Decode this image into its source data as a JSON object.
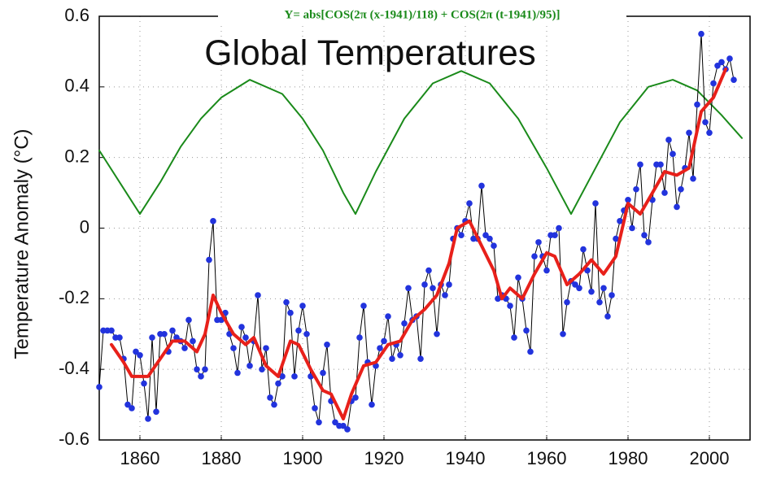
{
  "chart_data": {
    "type": "line",
    "title": "Global Temperatures",
    "subtitle": "Y= abs[COS(2π (x-1941)/118) + COS(2π (t-1941)/95)]",
    "y_label": "Temperature Anomaly (°C)",
    "xlim": [
      1850,
      2010
    ],
    "ylim": [
      -0.6,
      0.6
    ],
    "xticks": [
      1860,
      1880,
      1900,
      1920,
      1940,
      1960,
      1980,
      2000
    ],
    "yticks": [
      -0.6,
      -0.4,
      -0.2,
      0,
      0.2,
      0.4,
      0.6
    ],
    "grid": true,
    "series": [
      {
        "color": "#000000",
        "marker_color": "#2233dd",
        "markers": true,
        "width": 1,
        "x": [
          1850,
          1851,
          1852,
          1853,
          1854,
          1855,
          1856,
          1857,
          1858,
          1859,
          1860,
          1861,
          1862,
          1863,
          1864,
          1865,
          1866,
          1867,
          1868,
          1869,
          1870,
          1871,
          1872,
          1873,
          1874,
          1875,
          1876,
          1877,
          1878,
          1879,
          1880,
          1881,
          1882,
          1883,
          1884,
          1885,
          1886,
          1887,
          1888,
          1889,
          1890,
          1891,
          1892,
          1893,
          1894,
          1895,
          1896,
          1897,
          1898,
          1899,
          1900,
          1901,
          1902,
          1903,
          1904,
          1905,
          1906,
          1907,
          1908,
          1909,
          1910,
          1911,
          1912,
          1913,
          1914,
          1915,
          1916,
          1917,
          1918,
          1919,
          1920,
          1921,
          1922,
          1923,
          1924,
          1925,
          1926,
          1927,
          1928,
          1929,
          1930,
          1931,
          1932,
          1933,
          1934,
          1935,
          1936,
          1937,
          1938,
          1939,
          1940,
          1941,
          1942,
          1943,
          1944,
          1945,
          1946,
          1947,
          1948,
          1949,
          1950,
          1951,
          1952,
          1953,
          1954,
          1955,
          1956,
          1957,
          1958,
          1959,
          1960,
          1961,
          1962,
          1963,
          1964,
          1965,
          1966,
          1967,
          1968,
          1969,
          1970,
          1971,
          1972,
          1973,
          1974,
          1975,
          1976,
          1977,
          1978,
          1979,
          1980,
          1981,
          1982,
          1983,
          1984,
          1985,
          1986,
          1987,
          1988,
          1989,
          1990,
          1991,
          1992,
          1993,
          1994,
          1995,
          1996,
          1997,
          1998,
          1999,
          2000,
          2001,
          2002,
          2003,
          2004,
          2005,
          2006
        ],
        "values": [
          -0.45,
          -0.29,
          -0.29,
          -0.29,
          -0.31,
          -0.31,
          -0.37,
          -0.5,
          -0.51,
          -0.35,
          -0.36,
          -0.44,
          -0.54,
          -0.31,
          -0.52,
          -0.3,
          -0.3,
          -0.35,
          -0.29,
          -0.31,
          -0.32,
          -0.34,
          -0.26,
          -0.32,
          -0.4,
          -0.42,
          -0.4,
          -0.09,
          0.02,
          -0.26,
          -0.26,
          -0.24,
          -0.3,
          -0.34,
          -0.41,
          -0.28,
          -0.31,
          -0.39,
          -0.32,
          -0.19,
          -0.4,
          -0.34,
          -0.48,
          -0.5,
          -0.44,
          -0.42,
          -0.21,
          -0.24,
          -0.42,
          -0.29,
          -0.22,
          -0.3,
          -0.42,
          -0.51,
          -0.55,
          -0.41,
          -0.33,
          -0.49,
          -0.55,
          -0.56,
          -0.56,
          -0.57,
          -0.49,
          -0.48,
          -0.31,
          -0.22,
          -0.38,
          -0.5,
          -0.39,
          -0.34,
          -0.32,
          -0.25,
          -0.37,
          -0.33,
          -0.36,
          -0.27,
          -0.17,
          -0.26,
          -0.25,
          -0.37,
          -0.16,
          -0.12,
          -0.17,
          -0.3,
          -0.16,
          -0.19,
          -0.16,
          -0.03,
          0.0,
          -0.02,
          0.02,
          0.07,
          -0.03,
          -0.03,
          0.12,
          -0.02,
          -0.03,
          -0.05,
          -0.2,
          -0.19,
          -0.2,
          -0.22,
          -0.31,
          -0.14,
          -0.2,
          -0.29,
          -0.35,
          -0.08,
          -0.04,
          -0.08,
          -0.12,
          -0.02,
          -0.02,
          0.0,
          -0.3,
          -0.21,
          -0.15,
          -0.16,
          -0.17,
          -0.06,
          -0.12,
          -0.18,
          0.07,
          -0.21,
          -0.17,
          -0.25,
          -0.19,
          -0.03,
          0.02,
          0.05,
          0.08,
          0.0,
          0.11,
          0.18,
          -0.02,
          -0.04,
          0.08,
          0.18,
          0.18,
          0.1,
          0.25,
          0.21,
          0.06,
          0.11,
          0.17,
          0.27,
          0.14,
          0.35,
          0.55,
          0.3,
          0.27,
          0.41,
          0.46,
          0.47,
          0.45,
          0.48,
          0.42
        ]
      },
      {
        "color": "#e8201a",
        "markers": false,
        "width": 4,
        "x": [
          1853,
          1856,
          1858,
          1862,
          1865,
          1868,
          1871,
          1874,
          1876,
          1878,
          1880,
          1883,
          1886,
          1888,
          1891,
          1894,
          1897,
          1899,
          1902,
          1905,
          1907,
          1910,
          1912,
          1915,
          1918,
          1921,
          1924,
          1927,
          1930,
          1933,
          1936,
          1938,
          1941,
          1944,
          1947,
          1949,
          1951,
          1954,
          1957,
          1960,
          1962,
          1965,
          1968,
          1971,
          1974,
          1977,
          1980,
          1983,
          1986,
          1989,
          1992,
          1995,
          1998,
          2001,
          2004
        ],
        "values": [
          -0.33,
          -0.38,
          -0.42,
          -0.42,
          -0.37,
          -0.32,
          -0.32,
          -0.35,
          -0.3,
          -0.19,
          -0.24,
          -0.3,
          -0.33,
          -0.31,
          -0.39,
          -0.42,
          -0.32,
          -0.33,
          -0.4,
          -0.46,
          -0.47,
          -0.54,
          -0.47,
          -0.39,
          -0.38,
          -0.33,
          -0.32,
          -0.26,
          -0.23,
          -0.19,
          -0.1,
          0.0,
          0.02,
          -0.05,
          -0.12,
          -0.2,
          -0.17,
          -0.2,
          -0.13,
          -0.07,
          -0.08,
          -0.16,
          -0.13,
          -0.09,
          -0.13,
          -0.08,
          0.07,
          0.04,
          0.1,
          0.16,
          0.15,
          0.17,
          0.33,
          0.37,
          0.45
        ]
      },
      {
        "color": "#1a8a1a",
        "markers": false,
        "width": 2,
        "x": [
          1850,
          1855,
          1860,
          1865,
          1870,
          1875,
          1880,
          1887,
          1895,
          1900,
          1905,
          1910,
          1913,
          1918,
          1925,
          1932,
          1939,
          1946,
          1953,
          1960,
          1966,
          1972,
          1978,
          1985,
          1991,
          1997,
          2003,
          2008
        ],
        "values": [
          0.22,
          0.13,
          0.04,
          0.13,
          0.23,
          0.31,
          0.37,
          0.42,
          0.38,
          0.31,
          0.22,
          0.1,
          0.04,
          0.16,
          0.31,
          0.41,
          0.445,
          0.41,
          0.31,
          0.17,
          0.04,
          0.17,
          0.3,
          0.4,
          0.42,
          0.39,
          0.32,
          0.255
        ]
      }
    ]
  }
}
